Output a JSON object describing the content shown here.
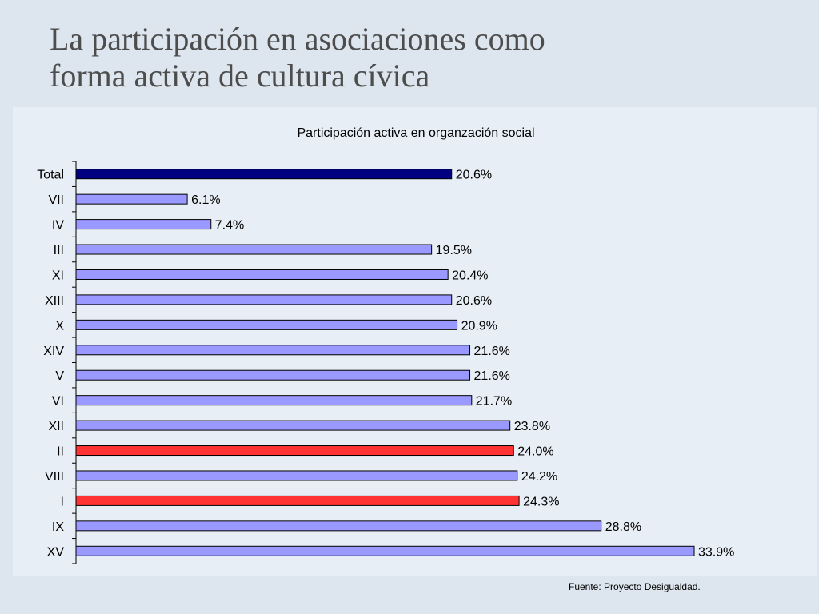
{
  "slide": {
    "title_line1": "La participación en asociaciones como",
    "title_line2": "forma activa de cultura cívica",
    "source": "Fuente: Proyecto Desigualdad."
  },
  "chart_data": {
    "type": "bar",
    "orientation": "horizontal",
    "title": "Participación activa en organzación social",
    "categories": [
      "Total",
      "VII",
      "IV",
      "III",
      "XI",
      "XIII",
      "X",
      "XIV",
      "V",
      "VI",
      "XII",
      "II",
      "VIII",
      "I",
      "IX",
      "XV"
    ],
    "values": [
      20.6,
      6.1,
      7.4,
      19.5,
      20.4,
      20.6,
      20.9,
      21.6,
      21.6,
      21.7,
      23.8,
      24.0,
      24.2,
      24.3,
      28.8,
      33.9
    ],
    "labels": [
      "20.6%",
      "6.1%",
      "7.4%",
      "19.5%",
      "20.4%",
      "20.6%",
      "20.9%",
      "21.6%",
      "21.6%",
      "21.7%",
      "23.8%",
      "24.0%",
      "24.2%",
      "24.3%",
      "28.8%",
      "33.9%"
    ],
    "colors": [
      "#000080",
      "#9999ff",
      "#9999ff",
      "#9999ff",
      "#9999ff",
      "#9999ff",
      "#9999ff",
      "#9999ff",
      "#9999ff",
      "#9999ff",
      "#9999ff",
      "#ff3333",
      "#9999ff",
      "#ff3333",
      "#9999ff",
      "#9999ff"
    ],
    "xlim": [
      0,
      34
    ],
    "grid": false,
    "legend": "none"
  }
}
